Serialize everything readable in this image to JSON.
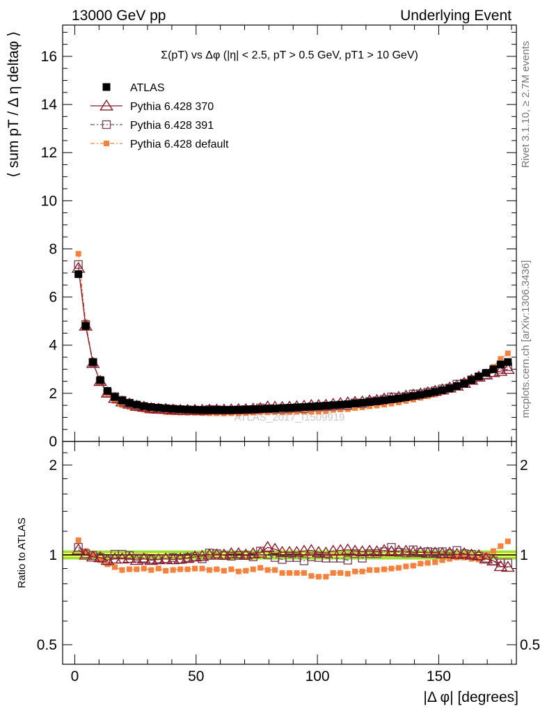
{
  "header": {
    "energy": "13000 GeV pp",
    "category": "Underlying Event"
  },
  "side_text": {
    "rivet": "Rivet 3.1.10, ≥ 2.7M events",
    "source": "mcplots.cern.ch [arXiv:1306.3436]"
  },
  "watermark": "ATLAS_2017_I1509919",
  "colors": {
    "atlas": "#000000",
    "p370": "#8b1a2b",
    "p391": "#7a4a5e",
    "pdefault": "#f5823c",
    "band_inner": "#ffff55",
    "band_outer": "#99e03a"
  },
  "chart_data": [
    {
      "type": "scatter",
      "title": "Σ(pT) vs Δφ (|η| < 2.5, pT > 0.5 GeV, pT1 > 10 GeV)",
      "ylabel": "⟨ sum pT / Δ η deltaφ ⟩",
      "xlabel": "|Δ φ| [degrees]",
      "xlim": [
        -5,
        182
      ],
      "ylim": [
        0,
        17.3
      ],
      "y_ticks": [
        0,
        2,
        4,
        6,
        8,
        10,
        12,
        14,
        16
      ],
      "x_ticks": [
        0,
        50,
        100,
        150
      ],
      "legend_position": "top-left",
      "x": [
        1.5,
        4.5,
        7.5,
        10.5,
        13.5,
        16.5,
        19.5,
        22.5,
        25.5,
        28.5,
        31.5,
        34.5,
        37.5,
        40.5,
        43.5,
        46.5,
        49.5,
        52.5,
        55.5,
        58.5,
        61.5,
        64.5,
        67.5,
        70.5,
        73.5,
        76.5,
        79.5,
        82.5,
        85.5,
        88.5,
        91.5,
        94.5,
        97.5,
        100.5,
        103.5,
        106.5,
        109.5,
        112.5,
        115.5,
        118.5,
        121.5,
        124.5,
        127.5,
        130.5,
        133.5,
        136.5,
        139.5,
        142.5,
        145.5,
        148.5,
        151.5,
        154.5,
        157.5,
        160.5,
        163.5,
        166.5,
        169.5,
        172.5,
        175.5,
        178.5
      ],
      "series": [
        {
          "name": "ATLAS",
          "marker": "filled-square",
          "values": [
            6.95,
            4.8,
            3.3,
            2.55,
            2.1,
            1.85,
            1.7,
            1.6,
            1.53,
            1.47,
            1.43,
            1.4,
            1.38,
            1.36,
            1.34,
            1.33,
            1.32,
            1.31,
            1.31,
            1.31,
            1.31,
            1.31,
            1.32,
            1.33,
            1.34,
            1.35,
            1.36,
            1.37,
            1.39,
            1.4,
            1.42,
            1.43,
            1.45,
            1.47,
            1.49,
            1.51,
            1.53,
            1.55,
            1.58,
            1.61,
            1.64,
            1.67,
            1.71,
            1.75,
            1.79,
            1.84,
            1.89,
            1.94,
            2.0,
            2.06,
            2.13,
            2.2,
            2.3,
            2.4,
            2.55,
            2.7,
            2.85,
            3.0,
            3.2,
            3.3
          ]
        },
        {
          "name": "Pythia 6.428 370",
          "marker": "open-triangle-line",
          "values": [
            7.2,
            4.8,
            3.25,
            2.5,
            2.02,
            1.8,
            1.65,
            1.56,
            1.47,
            1.43,
            1.37,
            1.35,
            1.34,
            1.31,
            1.3,
            1.3,
            1.3,
            1.3,
            1.31,
            1.31,
            1.31,
            1.32,
            1.33,
            1.33,
            1.35,
            1.37,
            1.44,
            1.43,
            1.42,
            1.43,
            1.45,
            1.47,
            1.5,
            1.5,
            1.51,
            1.55,
            1.58,
            1.61,
            1.63,
            1.65,
            1.69,
            1.71,
            1.77,
            1.79,
            1.84,
            1.89,
            1.93,
            1.98,
            2.03,
            2.09,
            2.15,
            2.23,
            2.31,
            2.42,
            2.55,
            2.68,
            2.77,
            2.87,
            2.92,
            3.0
          ]
        },
        {
          "name": "Pythia 6.428 391",
          "marker": "open-square-dashdot",
          "values": [
            7.35,
            4.85,
            3.28,
            2.5,
            2.0,
            1.86,
            1.71,
            1.59,
            1.49,
            1.43,
            1.38,
            1.36,
            1.34,
            1.33,
            1.29,
            1.3,
            1.3,
            1.27,
            1.33,
            1.32,
            1.3,
            1.3,
            1.31,
            1.32,
            1.32,
            1.39,
            1.36,
            1.34,
            1.34,
            1.37,
            1.39,
            1.36,
            1.43,
            1.44,
            1.45,
            1.47,
            1.49,
            1.49,
            1.6,
            1.57,
            1.66,
            1.69,
            1.75,
            1.85,
            1.83,
            1.87,
            1.97,
            1.98,
            2.05,
            2.1,
            2.18,
            2.22,
            2.38,
            2.42,
            2.56,
            2.67,
            2.78,
            2.86,
            3.0,
            3.1
          ]
        },
        {
          "name": "Pythia 6.428 default",
          "marker": "filled-square-dashdot",
          "values": [
            7.8,
            4.95,
            3.3,
            2.45,
            1.95,
            1.68,
            1.51,
            1.43,
            1.37,
            1.32,
            1.27,
            1.26,
            1.22,
            1.21,
            1.2,
            1.19,
            1.19,
            1.18,
            1.17,
            1.17,
            1.16,
            1.17,
            1.16,
            1.18,
            1.2,
            1.22,
            1.21,
            1.22,
            1.21,
            1.22,
            1.23,
            1.24,
            1.23,
            1.24,
            1.26,
            1.31,
            1.33,
            1.34,
            1.39,
            1.42,
            1.46,
            1.49,
            1.53,
            1.57,
            1.62,
            1.68,
            1.74,
            1.81,
            1.88,
            1.95,
            2.05,
            2.14,
            2.25,
            2.36,
            2.48,
            2.6,
            2.85,
            3.1,
            3.43,
            3.66
          ]
        }
      ]
    },
    {
      "type": "scatter",
      "ylabel": "Ratio to ATLAS",
      "xlabel": "|Δ φ| [degrees]",
      "xlim": [
        -5,
        182
      ],
      "ylim": [
        0.43,
        2.4
      ],
      "y_scale": "log",
      "y_ticks": [
        0.5,
        1,
        2
      ],
      "x_ticks": [
        0,
        50,
        100,
        150
      ],
      "reference_line": 1,
      "series": [
        {
          "name": "Pythia 6.428 370",
          "values": [
            1.04,
            1.0,
            0.985,
            0.98,
            0.96,
            0.97,
            0.97,
            0.975,
            0.96,
            0.97,
            0.96,
            0.965,
            0.97,
            0.965,
            0.97,
            0.975,
            0.985,
            0.99,
            1.0,
            1.0,
            1.0,
            1.01,
            1.01,
            1.0,
            1.01,
            1.015,
            1.06,
            1.045,
            1.02,
            1.02,
            1.02,
            1.03,
            1.035,
            1.02,
            1.015,
            1.03,
            1.035,
            1.04,
            1.03,
            1.025,
            1.03,
            1.025,
            1.035,
            1.025,
            1.03,
            1.03,
            1.02,
            1.02,
            1.015,
            1.015,
            1.01,
            1.015,
            1.005,
            1.01,
            1.0,
            0.995,
            0.97,
            0.955,
            0.915,
            0.91
          ]
        },
        {
          "name": "Pythia 6.428 391",
          "values": [
            1.06,
            1.01,
            0.995,
            0.98,
            0.955,
            1.005,
            1.005,
            0.995,
            0.975,
            0.975,
            0.965,
            0.97,
            0.97,
            0.98,
            0.965,
            0.98,
            0.985,
            0.97,
            1.015,
            1.01,
            0.995,
            0.99,
            0.995,
            0.995,
            0.985,
            1.03,
            1.0,
            0.98,
            0.965,
            0.98,
            0.98,
            0.955,
            0.985,
            0.98,
            0.975,
            0.975,
            0.975,
            0.96,
            1.01,
            0.975,
            1.01,
            1.01,
            1.025,
            1.06,
            1.02,
            1.015,
            1.04,
            1.02,
            1.025,
            1.02,
            1.025,
            1.01,
            1.035,
            1.01,
            1.005,
            0.99,
            0.975,
            0.955,
            0.94,
            0.94
          ]
        },
        {
          "name": "Pythia 6.428 default",
          "values": [
            1.12,
            1.03,
            1.0,
            0.96,
            0.93,
            0.91,
            0.89,
            0.895,
            0.895,
            0.9,
            0.89,
            0.9,
            0.885,
            0.89,
            0.895,
            0.895,
            0.9,
            0.9,
            0.89,
            0.895,
            0.885,
            0.895,
            0.88,
            0.885,
            0.895,
            0.905,
            0.89,
            0.89,
            0.87,
            0.87,
            0.87,
            0.87,
            0.85,
            0.845,
            0.845,
            0.87,
            0.87,
            0.865,
            0.88,
            0.88,
            0.89,
            0.89,
            0.895,
            0.9,
            0.905,
            0.915,
            0.92,
            0.935,
            0.94,
            0.945,
            0.96,
            0.97,
            0.98,
            0.98,
            0.97,
            0.965,
            1.0,
            1.03,
            1.07,
            1.11
          ]
        }
      ]
    }
  ],
  "legend": [
    {
      "label": "ATLAS"
    },
    {
      "label": "Pythia 6.428 370"
    },
    {
      "label": "Pythia 6.428 391"
    },
    {
      "label": "Pythia 6.428 default"
    }
  ]
}
